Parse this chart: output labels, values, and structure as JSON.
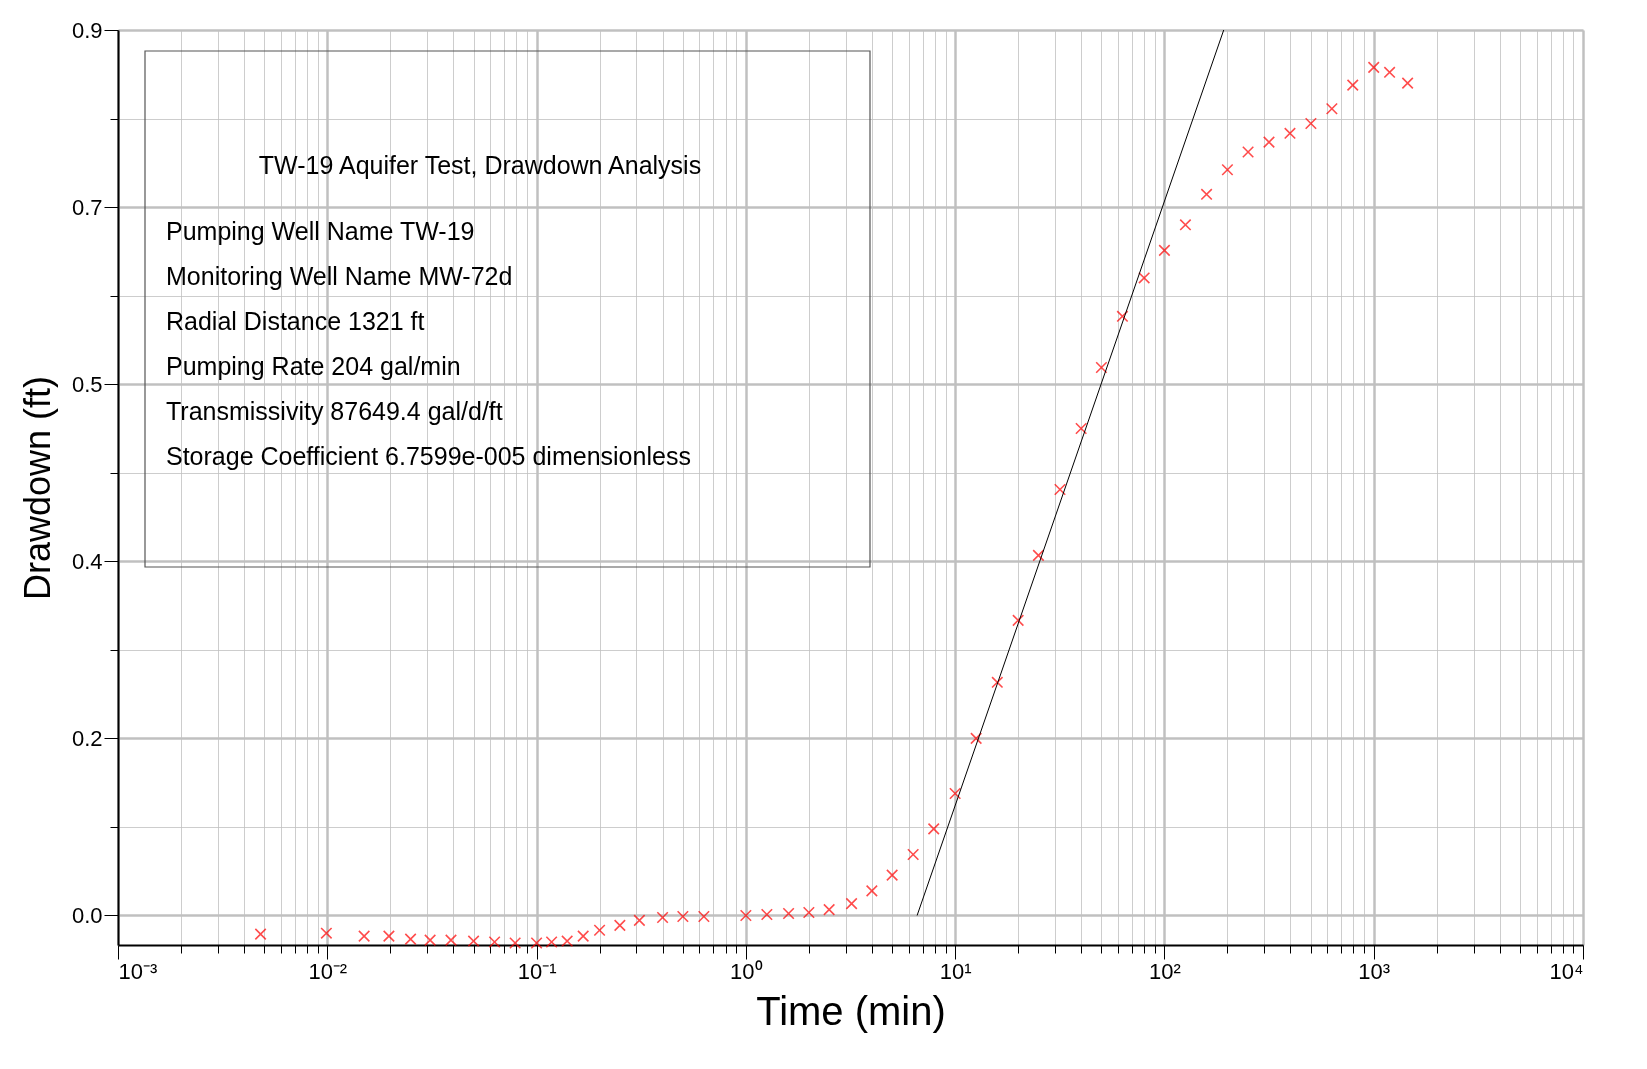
{
  "chart_data": {
    "type": "scatter",
    "xlabel": "Time (min)",
    "ylabel": "Drawdown (ft)",
    "log": "x",
    "grid": true,
    "xlim": [
      0.001,
      10000
    ],
    "ylim": [
      -0.03,
      0.9
    ],
    "xticks": [
      {
        "value": 0.001,
        "label": "10⁻³"
      },
      {
        "value": 0.002,
        "label": null
      },
      {
        "value": 0.003,
        "label": null
      },
      {
        "value": 0.004,
        "label": null
      },
      {
        "value": 0.005,
        "label": null
      },
      {
        "value": 0.006,
        "label": null
      },
      {
        "value": 0.007,
        "label": null
      },
      {
        "value": 0.008,
        "label": null
      },
      {
        "value": 0.009,
        "label": null
      },
      {
        "value": 0.01,
        "label": "10⁻²"
      },
      {
        "value": 0.02,
        "label": null
      },
      {
        "value": 0.03,
        "label": null
      },
      {
        "value": 0.04,
        "label": null
      },
      {
        "value": 0.05,
        "label": null
      },
      {
        "value": 0.06,
        "label": null
      },
      {
        "value": 0.07,
        "label": null
      },
      {
        "value": 0.08,
        "label": null
      },
      {
        "value": 0.09,
        "label": null
      },
      {
        "value": 0.1,
        "label": "10⁻¹"
      },
      {
        "value": 0.2,
        "label": null
      },
      {
        "value": 0.3,
        "label": null
      },
      {
        "value": 0.4,
        "label": null
      },
      {
        "value": 0.5,
        "label": null
      },
      {
        "value": 0.6,
        "label": null
      },
      {
        "value": 0.7,
        "label": null
      },
      {
        "value": 0.8,
        "label": null
      },
      {
        "value": 0.9,
        "label": null
      },
      {
        "value": 1,
        "label": "10⁰"
      },
      {
        "value": 2,
        "label": null
      },
      {
        "value": 3,
        "label": null
      },
      {
        "value": 4,
        "label": null
      },
      {
        "value": 5,
        "label": null
      },
      {
        "value": 6,
        "label": null
      },
      {
        "value": 7,
        "label": null
      },
      {
        "value": 8,
        "label": null
      },
      {
        "value": 9,
        "label": null
      },
      {
        "value": 10,
        "label": "10¹"
      },
      {
        "value": 20,
        "label": null
      },
      {
        "value": 30,
        "label": null
      },
      {
        "value": 40,
        "label": null
      },
      {
        "value": 50,
        "label": null
      },
      {
        "value": 60,
        "label": null
      },
      {
        "value": 70,
        "label": null
      },
      {
        "value": 80,
        "label": null
      },
      {
        "value": 90,
        "label": null
      },
      {
        "value": 100,
        "label": "10²"
      },
      {
        "value": 200,
        "label": null
      },
      {
        "value": 300,
        "label": null
      },
      {
        "value": 400,
        "label": null
      },
      {
        "value": 500,
        "label": null
      },
      {
        "value": 600,
        "label": null
      },
      {
        "value": 700,
        "label": null
      },
      {
        "value": 800,
        "label": null
      },
      {
        "value": 900,
        "label": null
      },
      {
        "value": 1000,
        "label": "10³"
      },
      {
        "value": 2000,
        "label": null
      },
      {
        "value": 3000,
        "label": null
      },
      {
        "value": 4000,
        "label": null
      },
      {
        "value": 5000,
        "label": null
      },
      {
        "value": 6000,
        "label": null
      },
      {
        "value": 7000,
        "label": null
      },
      {
        "value": 8000,
        "label": null
      },
      {
        "value": 9000,
        "label": null
      },
      {
        "value": 10000,
        "label": "10⁴"
      }
    ],
    "yticks": [
      {
        "value": 0,
        "label": "0.0"
      },
      {
        "value": 0.09,
        "label": null
      },
      {
        "value": 0.18,
        "label": "0.2"
      },
      {
        "value": 0.27,
        "label": null
      },
      {
        "value": 0.36,
        "label": "0.4"
      },
      {
        "value": 0.45,
        "label": null
      },
      {
        "value": 0.54,
        "label": "0.5"
      },
      {
        "value": 0.63,
        "label": null
      },
      {
        "value": 0.72,
        "label": "0.7"
      },
      {
        "value": 0.81,
        "label": null
      },
      {
        "value": 0.9,
        "label": "0.9"
      }
    ],
    "annotations": [
      "TW-19 Aquifer Test, Drawdown Analysis",
      "Pumping Well Name  TW-19",
      "Monitoring Well Name  MW-72d",
      "Radial Distance  1321  ft",
      "Pumping Rate  204  gal/min",
      "Transmissivity  87649.4  gal/d/ft",
      "Storage Coefficient  6.7599e-005  dimensionless"
    ],
    "series": [
      {
        "marker": "cross",
        "color": "#ff0000",
        "x": [
          0.0048,
          0.0099,
          0.015,
          0.0197,
          0.025,
          0.031,
          0.039,
          0.05,
          0.063,
          0.079,
          0.1,
          0.118,
          0.14,
          0.167,
          0.2,
          0.25,
          0.31,
          0.4,
          0.5,
          0.63,
          1.0,
          1.26,
          1.6,
          2.0,
          2.5,
          3.2,
          4.0,
          5.0,
          6.3,
          7.9,
          10,
          12.6,
          15.9,
          20,
          25,
          31.7,
          40,
          50,
          63,
          80,
          100,
          126,
          159,
          200,
          251,
          316,
          398,
          501,
          631,
          794,
          1000,
          1191,
          1452
        ],
        "values": [
          -0.019,
          -0.018,
          -0.021,
          -0.021,
          -0.024,
          -0.025,
          -0.025,
          -0.026,
          -0.027,
          -0.028,
          -0.028,
          -0.027,
          -0.026,
          -0.021,
          -0.015,
          -0.01,
          -0.005,
          -0.002,
          -0.001,
          -0.001,
          0.0,
          0.001,
          0.002,
          0.003,
          0.006,
          0.012,
          0.025,
          0.041,
          0.062,
          0.088,
          0.124,
          0.18,
          0.237,
          0.3,
          0.366,
          0.433,
          0.495,
          0.557,
          0.609,
          0.648,
          0.676,
          0.702,
          0.733,
          0.758,
          0.776,
          0.786,
          0.795,
          0.805,
          0.82,
          0.844,
          0.862,
          0.857,
          0.846
        ]
      },
      {
        "type": "line",
        "color": "#000000",
        "x": [
          6.58,
          192
        ],
        "values": [
          0.0,
          0.9
        ]
      }
    ]
  }
}
